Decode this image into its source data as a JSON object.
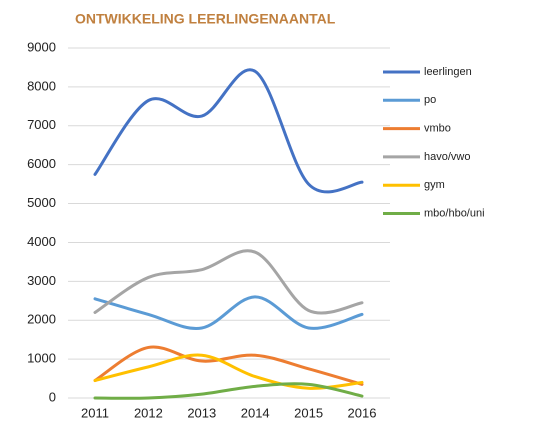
{
  "chart_data": {
    "type": "line",
    "title": "ONTWIKKELING LEERLINGENAANTAL",
    "x": [
      "2011",
      "2012",
      "2013",
      "2014",
      "2015",
      "2016"
    ],
    "series": [
      {
        "name": "leerlingen",
        "color": "#4472c4",
        "values": [
          5750,
          7650,
          7250,
          8400,
          5500,
          5550
        ]
      },
      {
        "name": "po",
        "color": "#5b9bd5",
        "values": [
          2550,
          2150,
          1800,
          2600,
          1800,
          2150
        ]
      },
      {
        "name": "vmbo",
        "color": "#ed7d31",
        "values": [
          450,
          1300,
          950,
          1100,
          750,
          350
        ]
      },
      {
        "name": "havo/vwo",
        "color": "#a5a5a5",
        "values": [
          2200,
          3100,
          3300,
          3750,
          2250,
          2450
        ]
      },
      {
        "name": "gym",
        "color": "#ffc000",
        "values": [
          450,
          800,
          1100,
          550,
          250,
          400
        ]
      },
      {
        "name": "mbo/hbo/uni",
        "color": "#70ad47",
        "values": [
          0,
          0,
          100,
          300,
          350,
          50
        ]
      }
    ],
    "ylim": [
      0,
      9000
    ],
    "yticks": [
      0,
      1000,
      2000,
      3000,
      4000,
      5000,
      6000,
      7000,
      8000,
      9000
    ],
    "grid": true,
    "legend": "right"
  }
}
